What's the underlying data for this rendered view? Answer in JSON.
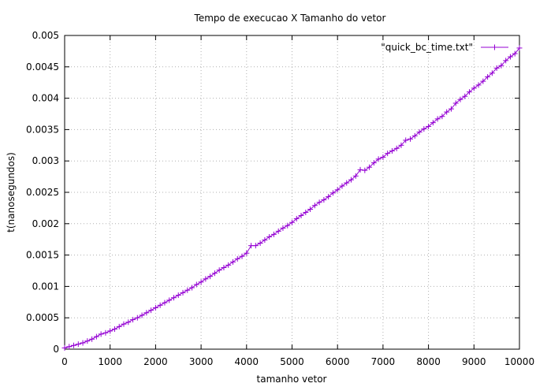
{
  "chart_data": {
    "type": "line",
    "title": "Tempo de execucao X Tamanho do vetor",
    "xlabel": "tamanho vetor",
    "ylabel": "t(nanosegundos)",
    "xlim": [
      0,
      10000
    ],
    "ylim": [
      0,
      0.005
    ],
    "xticks": [
      0,
      1000,
      2000,
      3000,
      4000,
      5000,
      6000,
      7000,
      8000,
      9000,
      10000
    ],
    "xtick_labels": [
      "0",
      "1000",
      "2000",
      "3000",
      "4000",
      "5000",
      "6000",
      "7000",
      "8000",
      "9000",
      "10000"
    ],
    "yticks": [
      0,
      0.0005,
      0.001,
      0.0015,
      0.002,
      0.0025,
      0.003,
      0.0035,
      0.004,
      0.0045,
      0.005
    ],
    "ytick_labels": [
      "0",
      "0.0005",
      "0.001",
      "0.0015",
      "0.002",
      "0.0025",
      "0.003",
      "0.0035",
      "0.004",
      "0.0045",
      "0.005"
    ],
    "grid": true,
    "legend_position": "top-right",
    "color": "#9400d3",
    "series": [
      {
        "name": "\"quick_bc_time.txt\"",
        "marker": "plus",
        "x": [
          0,
          100,
          200,
          300,
          400,
          500,
          600,
          700,
          800,
          900,
          1000,
          1100,
          1200,
          1300,
          1400,
          1500,
          1600,
          1700,
          1800,
          1900,
          2000,
          2100,
          2200,
          2300,
          2400,
          2500,
          2600,
          2700,
          2800,
          2900,
          3000,
          3100,
          3200,
          3300,
          3400,
          3500,
          3600,
          3700,
          3800,
          3900,
          4000,
          4100,
          4200,
          4300,
          4400,
          4500,
          4600,
          4700,
          4800,
          4900,
          5000,
          5100,
          5200,
          5300,
          5400,
          5500,
          5600,
          5700,
          5800,
          5900,
          6000,
          6100,
          6200,
          6300,
          6400,
          6500,
          6600,
          6700,
          6800,
          6900,
          7000,
          7100,
          7200,
          7300,
          7400,
          7500,
          7600,
          7700,
          7800,
          7900,
          8000,
          8100,
          8200,
          8300,
          8400,
          8500,
          8600,
          8700,
          8800,
          8900,
          9000,
          9100,
          9200,
          9300,
          9400,
          9500,
          9600,
          9700,
          9800,
          9900,
          10000
        ],
        "y": [
          2e-05,
          4e-05,
          6e-05,
          8e-05,
          0.0001,
          0.00013,
          0.00016,
          0.0002,
          0.00024,
          0.00026,
          0.00029,
          0.00032,
          0.00036,
          0.0004,
          0.00043,
          0.00047,
          0.0005,
          0.00054,
          0.00058,
          0.00062,
          0.00066,
          0.0007,
          0.00074,
          0.00078,
          0.00082,
          0.00086,
          0.0009,
          0.00094,
          0.00098,
          0.00103,
          0.00107,
          0.00112,
          0.00116,
          0.00121,
          0.00126,
          0.0013,
          0.00134,
          0.00139,
          0.00144,
          0.00148,
          0.00153,
          0.00165,
          0.00165,
          0.00169,
          0.00174,
          0.00179,
          0.00183,
          0.00188,
          0.00193,
          0.00197,
          0.00202,
          0.00208,
          0.00213,
          0.00218,
          0.00223,
          0.00229,
          0.00234,
          0.00238,
          0.00243,
          0.00249,
          0.00254,
          0.0026,
          0.00265,
          0.0027,
          0.00276,
          0.00286,
          0.00285,
          0.0029,
          0.00297,
          0.00303,
          0.00306,
          0.00312,
          0.00316,
          0.0032,
          0.00325,
          0.00333,
          0.00335,
          0.0034,
          0.00346,
          0.00351,
          0.00355,
          0.00361,
          0.00367,
          0.00371,
          0.00378,
          0.00383,
          0.00392,
          0.00398,
          0.00403,
          0.0041,
          0.00416,
          0.00421,
          0.00427,
          0.00434,
          0.0044,
          0.00448,
          0.00452,
          0.0046,
          0.00466,
          0.00471,
          0.0048
        ]
      }
    ]
  }
}
